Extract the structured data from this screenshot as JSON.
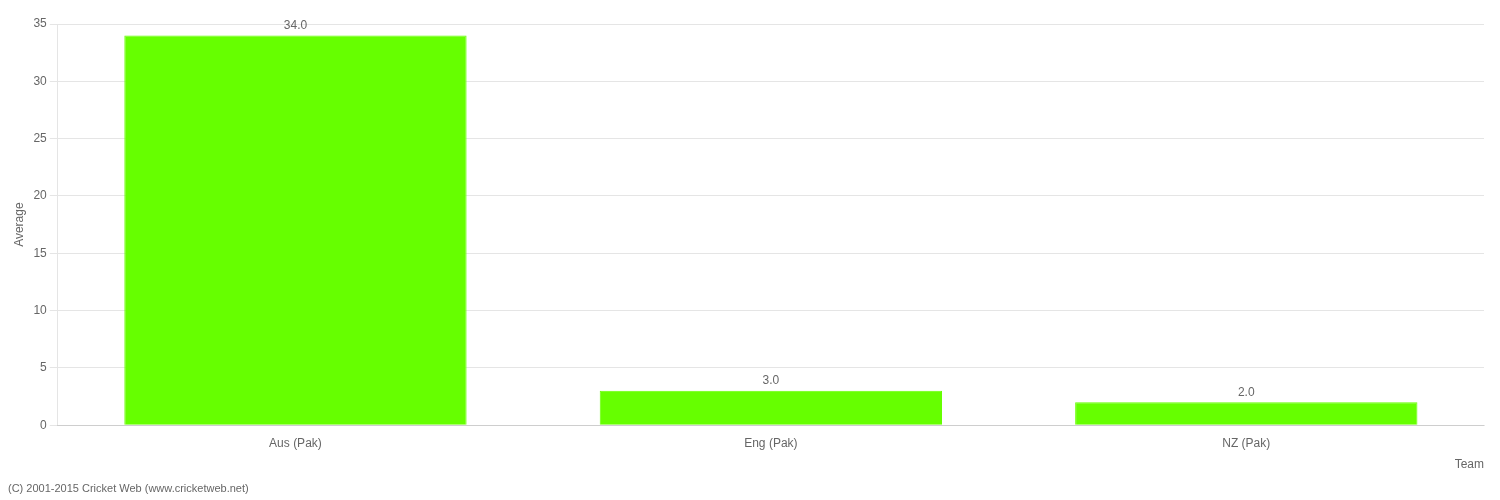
{
  "chart_data": {
    "type": "bar",
    "categories": [
      "Aus (Pak)",
      "Eng (Pak)",
      "NZ (Pak)"
    ],
    "values": [
      34.0,
      3.0,
      2.0
    ],
    "value_labels": [
      "34.0",
      "3.0",
      "2.0"
    ],
    "data_labels": true,
    "color": "#66ff00",
    "ylabel": "Average",
    "xlabel": "Team",
    "ylim": [
      0,
      35
    ],
    "yticks": [
      0,
      5,
      10,
      15,
      20,
      25,
      30,
      35
    ],
    "grid": true,
    "annotations": [
      "(C) 2001-2015 Cricket Web (www.cricketweb.net)"
    ]
  }
}
